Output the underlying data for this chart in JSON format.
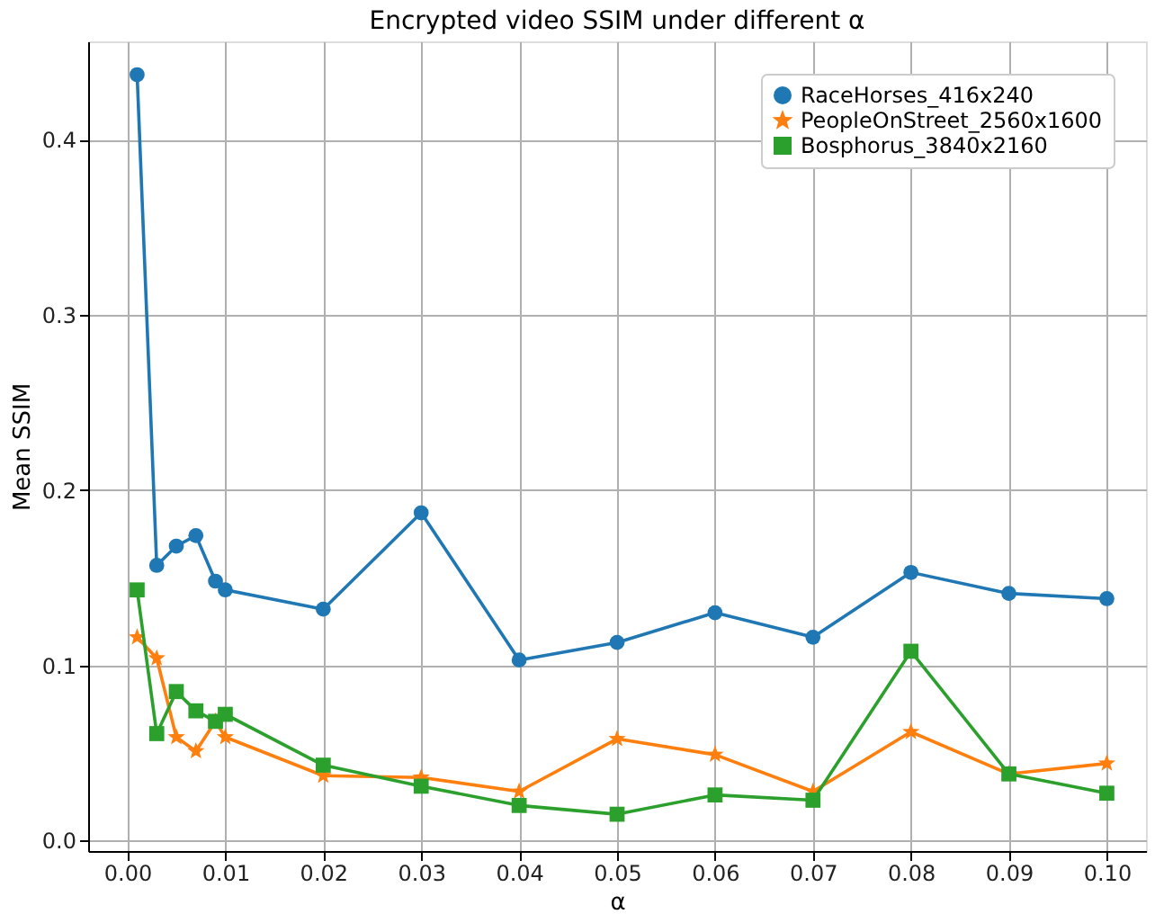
{
  "chart_data": {
    "type": "line",
    "title": "Encrypted video SSIM under different α",
    "xlabel": "α",
    "ylabel": "Mean SSIM",
    "x": [
      0.001,
      0.003,
      0.005,
      0.007,
      0.009,
      0.01,
      0.02,
      0.03,
      0.04,
      0.05,
      0.06,
      0.07,
      0.08,
      0.09,
      0.1
    ],
    "series": [
      {
        "name": "RaceHorses_416x240",
        "color": "#1f77b4",
        "marker": "circle",
        "values": [
          0.437,
          0.157,
          0.168,
          0.174,
          0.148,
          0.143,
          0.132,
          0.187,
          0.103,
          0.113,
          0.13,
          0.116,
          0.153,
          0.141,
          0.138
        ]
      },
      {
        "name": "PeopleOnStreet_2560x1600",
        "color": "#ff7f0e",
        "marker": "star",
        "values": [
          0.116,
          0.104,
          0.059,
          0.051,
          0.068,
          0.059,
          0.037,
          0.036,
          0.028,
          0.058,
          0.049,
          0.028,
          0.062,
          0.038,
          0.044
        ]
      },
      {
        "name": "Bosphorus_3840x2160",
        "color": "#2ca02c",
        "marker": "square",
        "values": [
          0.143,
          0.061,
          0.085,
          0.074,
          0.068,
          0.072,
          0.043,
          0.031,
          0.02,
          0.015,
          0.026,
          0.023,
          0.108,
          0.038,
          0.027
        ]
      }
    ],
    "xlim": [
      -0.004,
      0.104
    ],
    "xticks": [
      {
        "value": 0,
        "label": "0.00"
      },
      {
        "value": 0.01,
        "label": "0.01"
      },
      {
        "value": 0.02,
        "label": "0.02"
      },
      {
        "value": 0.03,
        "label": "0.03"
      },
      {
        "value": 0.04,
        "label": "0.04"
      },
      {
        "value": 0.05,
        "label": "0.05"
      },
      {
        "value": 0.06,
        "label": "0.06"
      },
      {
        "value": 0.07,
        "label": "0.07"
      },
      {
        "value": 0.08,
        "label": "0.08"
      },
      {
        "value": 0.09,
        "label": "0.09"
      },
      {
        "value": 0.1,
        "label": "0.10"
      }
    ],
    "ylim": [
      -0.006,
      0.456
    ],
    "yticks": [
      {
        "value": 0,
        "label": "0.0"
      },
      0.1,
      0.2,
      0.3,
      0.4
    ],
    "grid": true,
    "legend": "top right",
    "line_style": "solid"
  }
}
